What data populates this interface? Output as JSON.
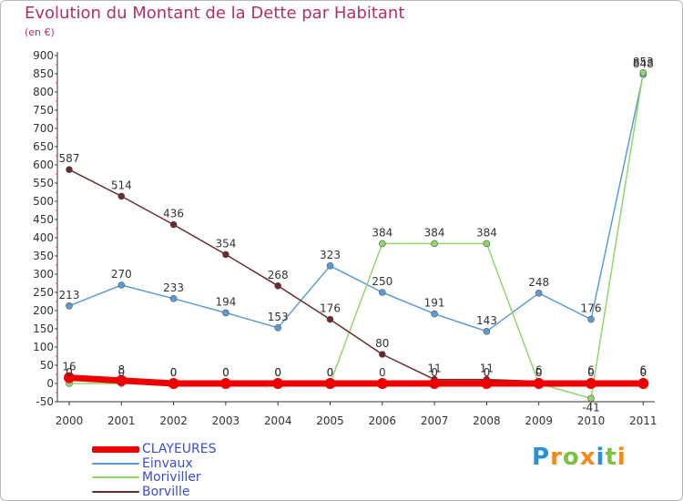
{
  "title": "Evolution du Montant de la Dette par Habitant",
  "subtitle": "(en €)",
  "logo": {
    "letters": [
      "P",
      "r",
      "o",
      "x",
      "i",
      "t",
      "i"
    ],
    "colors": [
      "#2a8fd6",
      "#f28a1e",
      "#7cc242",
      "#f28a1e",
      "#2a8fd6",
      "#7cc242",
      "#f28a1e"
    ]
  },
  "chart_data": {
    "type": "line",
    "categories": [
      "2000",
      "2001",
      "2002",
      "2003",
      "2004",
      "2005",
      "2006",
      "2007",
      "2008",
      "2009",
      "2010",
      "2011"
    ],
    "ylim": [
      -50,
      900
    ],
    "yticks": [
      -50,
      0,
      50,
      100,
      150,
      200,
      250,
      300,
      350,
      400,
      450,
      500,
      550,
      600,
      650,
      700,
      750,
      800,
      850,
      900
    ],
    "grid": false,
    "legend_position": "bottom-left",
    "series": [
      {
        "name": "CLAYEURES",
        "color": "#ee0000",
        "values": [
          16,
          8,
          0,
          0,
          0,
          0,
          0,
          0,
          0,
          0,
          0,
          0
        ],
        "labels": [
          "16",
          "8",
          "0",
          "0",
          "0",
          "0",
          "0",
          "0",
          "0",
          "0",
          "0",
          "0"
        ]
      },
      {
        "name": "Einvaux",
        "color": "#5b9bd5",
        "values": [
          213,
          270,
          233,
          194,
          153,
          323,
          250,
          191,
          143,
          248,
          176,
          848
        ],
        "labels": [
          "213",
          "270",
          "233",
          "194",
          "153",
          "323",
          "250",
          "191",
          "143",
          "248",
          "176",
          "848"
        ]
      },
      {
        "name": "Moriviller",
        "color": "#8fd86a",
        "values": [
          0,
          0,
          0,
          0,
          0,
          0,
          384,
          384,
          384,
          0,
          -41,
          853
        ],
        "labels": [
          "0",
          "0",
          "0",
          "0",
          "0",
          "0",
          "384",
          "384",
          "384",
          "0",
          "-41",
          "853"
        ]
      },
      {
        "name": "Borville",
        "color": "#6b2a2a",
        "values": [
          587,
          514,
          436,
          354,
          268,
          176,
          80,
          11,
          11,
          6,
          6,
          6
        ],
        "labels": [
          "587",
          "514",
          "436",
          "354",
          "268",
          "176",
          "80",
          "11",
          "11",
          "6",
          "6",
          "6"
        ]
      }
    ]
  }
}
